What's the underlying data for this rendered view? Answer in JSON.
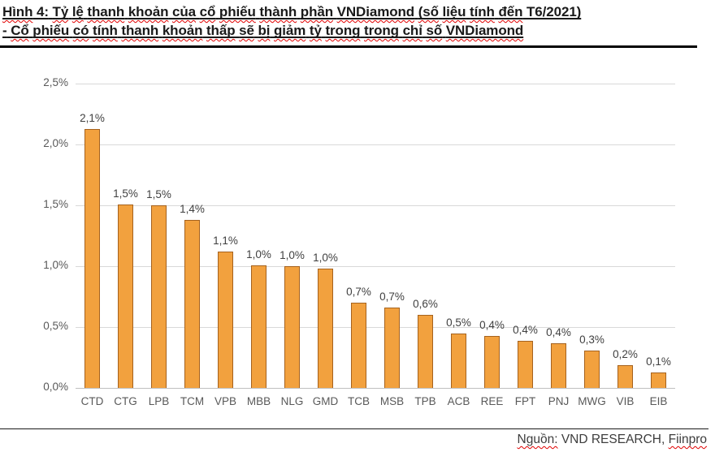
{
  "title": {
    "line1": "Hình 4: Tỷ lệ thanh khoản của cổ phiếu thành phần VNDiamond (số liệu tính đến T6/2021)",
    "line2": "- Cổ phiếu có tính thanh khoản thấp sẽ bị giảm tỷ trong trong chỉ số VNDiamond",
    "no_squiggle_tokens": [
      "4:",
      "T6/2021)",
      "-"
    ]
  },
  "chart_data": {
    "type": "bar",
    "categories": [
      "CTD",
      "CTG",
      "LPB",
      "TCM",
      "VPB",
      "MBB",
      "NLG",
      "GMD",
      "TCB",
      "MSB",
      "TPB",
      "ACB",
      "REE",
      "FPT",
      "PNJ",
      "MWG",
      "VIB",
      "EIB"
    ],
    "values": [
      2.13,
      1.51,
      1.5,
      1.38,
      1.12,
      1.01,
      1.0,
      0.98,
      0.7,
      0.66,
      0.6,
      0.45,
      0.43,
      0.39,
      0.37,
      0.31,
      0.19,
      0.13
    ],
    "value_labels": [
      "2,1%",
      "1,5%",
      "1,5%",
      "1,4%",
      "1,1%",
      "1,0%",
      "1,0%",
      "1,0%",
      "0,7%",
      "0,7%",
      "0,6%",
      "0,5%",
      "0,4%",
      "0,4%",
      "0,4%",
      "0,3%",
      "0,2%",
      "0,1%"
    ],
    "title": "",
    "xlabel": "",
    "ylabel": "",
    "ylim": [
      0,
      2.5
    ],
    "ytick_values": [
      0,
      0.5,
      1.0,
      1.5,
      2.0,
      2.5
    ],
    "ytick_labels": [
      "0,0%",
      "0,5%",
      "1,0%",
      "1,5%",
      "2,0%",
      "2,5%"
    ],
    "grid": true,
    "legend": false,
    "bar_color": "#f2a13e",
    "bar_border_color": "#a5621e"
  },
  "source": {
    "label": "Nguồn:",
    "middle": " VND RESEARCH, ",
    "agency": "Fiinpro"
  },
  "colors": {
    "squiggle": "#e00000",
    "gridline": "#d9d9d9",
    "axis_line": "#bfbfbf",
    "tick_text": "#595959",
    "value_text": "#404040"
  }
}
